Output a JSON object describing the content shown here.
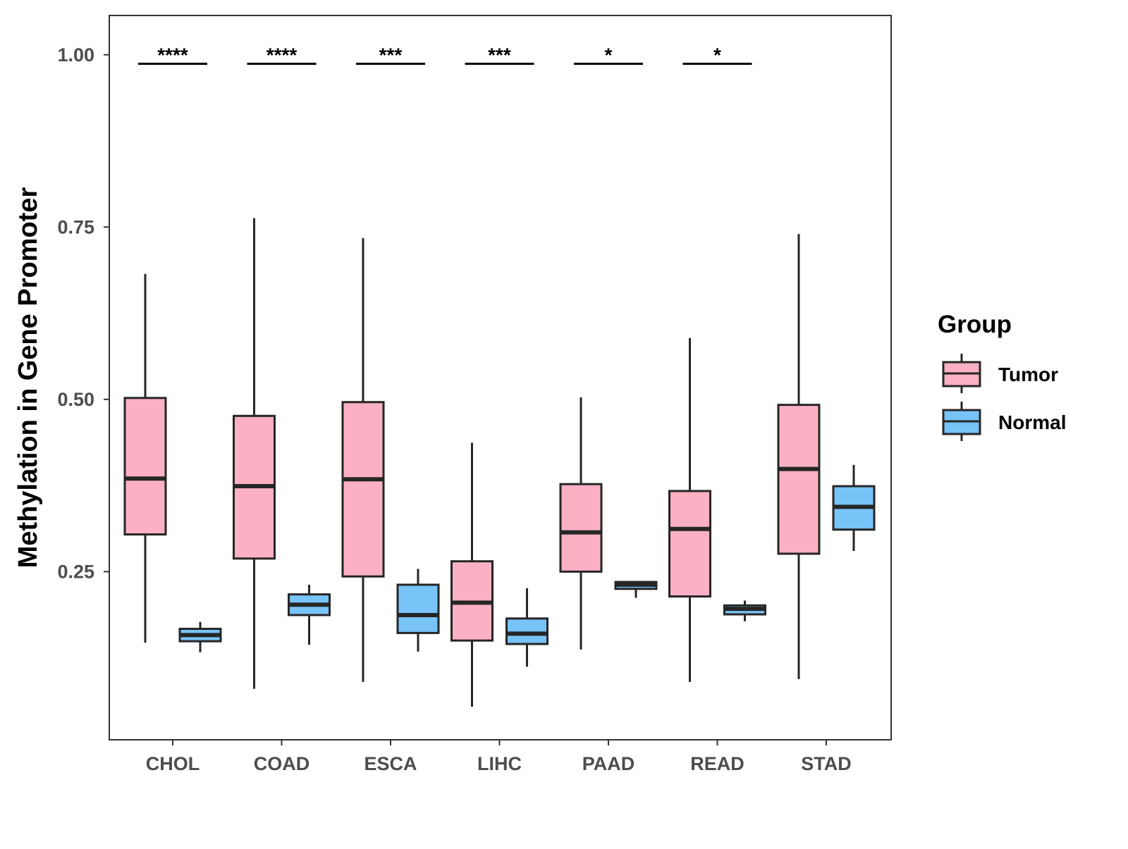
{
  "chart_data": {
    "type": "boxplot",
    "title": "",
    "xlabel": "",
    "ylabel": "Methylation in Gene Promoter",
    "ylim": [
      0.006,
      1.057
    ],
    "yticks": [
      "0.25",
      "0.50",
      "0.75",
      "1.00"
    ],
    "ytick_values": [
      0.25,
      0.5,
      0.75,
      1.0
    ],
    "categories": [
      "CHOL",
      "COAD",
      "ESCA",
      "LIHC",
      "PAAD",
      "READ",
      "STAD"
    ],
    "grid": false,
    "legend": {
      "title": "Group",
      "position": "right",
      "entries": [
        "Tumor",
        "Normal"
      ]
    },
    "colors": {
      "Tumor": "#FBB1C3",
      "Normal": "#78C3F8",
      "stroke": "#262626"
    },
    "series": [
      {
        "name": "Tumor",
        "boxes": [
          {
            "low": 0.147,
            "q1": 0.304,
            "median": 0.385,
            "q3": 0.502,
            "high": 0.682
          },
          {
            "low": 0.08,
            "q1": 0.269,
            "median": 0.374,
            "q3": 0.476,
            "high": 0.763
          },
          {
            "low": 0.09,
            "q1": 0.243,
            "median": 0.384,
            "q3": 0.496,
            "high": 0.734
          },
          {
            "low": 0.054,
            "q1": 0.15,
            "median": 0.205,
            "q3": 0.265,
            "high": 0.437
          },
          {
            "low": 0.137,
            "q1": 0.25,
            "median": 0.307,
            "q3": 0.377,
            "high": 0.503
          },
          {
            "low": 0.09,
            "q1": 0.214,
            "median": 0.312,
            "q3": 0.367,
            "high": 0.589
          },
          {
            "low": 0.094,
            "q1": 0.276,
            "median": 0.399,
            "q3": 0.492,
            "high": 0.74
          }
        ]
      },
      {
        "name": "Normal",
        "boxes": [
          {
            "low": 0.133,
            "q1": 0.149,
            "median": 0.158,
            "q3": 0.167,
            "high": 0.177
          },
          {
            "low": 0.144,
            "q1": 0.187,
            "median": 0.202,
            "q3": 0.217,
            "high": 0.231
          },
          {
            "low": 0.134,
            "q1": 0.161,
            "median": 0.187,
            "q3": 0.231,
            "high": 0.254
          },
          {
            "low": 0.112,
            "q1": 0.145,
            "median": 0.16,
            "q3": 0.182,
            "high": 0.226
          },
          {
            "low": 0.212,
            "q1": 0.225,
            "median": 0.231,
            "q3": 0.235,
            "high": 0.235
          },
          {
            "low": 0.178,
            "q1": 0.188,
            "median": 0.196,
            "q3": 0.201,
            "high": 0.208
          },
          {
            "low": 0.28,
            "q1": 0.311,
            "median": 0.344,
            "q3": 0.374,
            "high": 0.405
          }
        ]
      }
    ],
    "significance": [
      {
        "category": "CHOL",
        "label": "****",
        "y": 0.987
      },
      {
        "category": "COAD",
        "label": "****",
        "y": 0.987
      },
      {
        "category": "ESCA",
        "label": "***",
        "y": 0.987
      },
      {
        "category": "LIHC",
        "label": "***",
        "y": 0.987
      },
      {
        "category": "PAAD",
        "label": "*",
        "y": 0.987
      },
      {
        "category": "READ",
        "label": "*",
        "y": 0.987
      }
    ]
  }
}
